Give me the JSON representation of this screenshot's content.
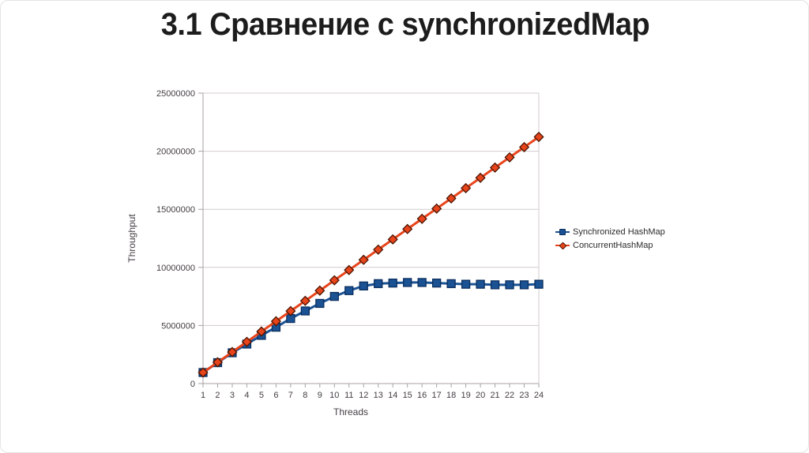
{
  "title": "3.1 Сравнение с synchronizedMap",
  "chart_data": {
    "type": "line",
    "title": "",
    "xlabel": "Threads",
    "ylabel": "Throughput",
    "x": [
      1,
      2,
      3,
      4,
      5,
      6,
      7,
      8,
      9,
      10,
      11,
      12,
      13,
      14,
      15,
      16,
      17,
      18,
      19,
      20,
      21,
      22,
      23,
      24
    ],
    "xlim": [
      1,
      24
    ],
    "ylim": [
      0,
      25000000
    ],
    "yticks": [
      0,
      5000000,
      10000000,
      15000000,
      20000000,
      25000000
    ],
    "ytick_labels": [
      "0",
      "5000000",
      "10000000",
      "15000000",
      "20000000",
      "25000000"
    ],
    "grid": true,
    "legend_position": "right",
    "grid_color": "#d2cbce",
    "axis_color": "#a9a1a5",
    "series": [
      {
        "name": "Synchronized HashMap",
        "marker": "square",
        "color": "#1a5294",
        "marker_fill": "#1a5294",
        "marker_stroke": "#0b2e5e",
        "values": [
          950000,
          1800000,
          2650000,
          3400000,
          4150000,
          4850000,
          5600000,
          6250000,
          6900000,
          7500000,
          8000000,
          8400000,
          8600000,
          8650000,
          8700000,
          8700000,
          8650000,
          8600000,
          8550000,
          8550000,
          8500000,
          8500000,
          8500000,
          8550000
        ]
      },
      {
        "name": "ConcurrentHashMap",
        "marker": "diamond",
        "color": "#e8441b",
        "marker_fill": "#e8441b",
        "marker_stroke": "#4a1502",
        "values": [
          950000,
          1830000,
          2710000,
          3590000,
          4480000,
          5360000,
          6240000,
          7120000,
          8000000,
          8890000,
          9770000,
          10650000,
          11530000,
          12410000,
          13300000,
          14180000,
          15060000,
          15940000,
          16820000,
          17710000,
          18590000,
          19470000,
          20350000,
          21230000
        ]
      }
    ]
  }
}
